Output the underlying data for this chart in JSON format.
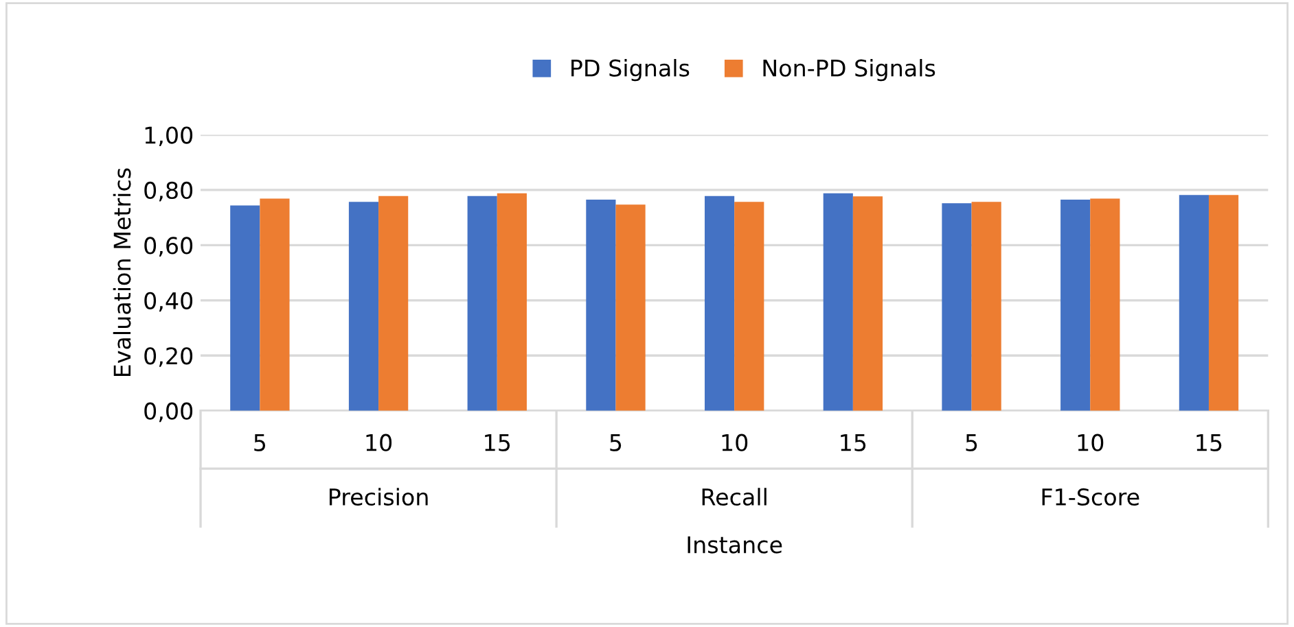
{
  "chart_data": {
    "type": "bar",
    "xlabel": "Instance",
    "ylabel": "Evaluation Metrics",
    "categories": [
      "5",
      "10",
      "15",
      "5",
      "10",
      "15",
      "5",
      "10",
      "15"
    ],
    "annotations": [
      "Precision",
      "Recall",
      "F1-Score"
    ],
    "series": [
      {
        "name": "PD Signals",
        "color": "#4472c4",
        "values": [
          0.744,
          0.757,
          0.778,
          0.765,
          0.778,
          0.788,
          0.752,
          0.765,
          0.782
        ]
      },
      {
        "name": "Non-PD Signals",
        "color": "#ed7d31",
        "values": [
          0.769,
          0.778,
          0.788,
          0.747,
          0.757,
          0.777,
          0.757,
          0.769,
          0.782
        ]
      }
    ],
    "ylim": [
      0,
      1
    ],
    "yticks": [
      {
        "value": 0,
        "label": "0,00"
      },
      {
        "value": 0.2,
        "label": "0,20"
      },
      {
        "value": 0.4,
        "label": "0,40"
      },
      {
        "value": 0.6,
        "label": "0,60"
      },
      {
        "value": 0.8,
        "label": "0,80"
      },
      {
        "value": 1,
        "label": "1,00"
      }
    ],
    "grid": "y",
    "legend": "top"
  }
}
